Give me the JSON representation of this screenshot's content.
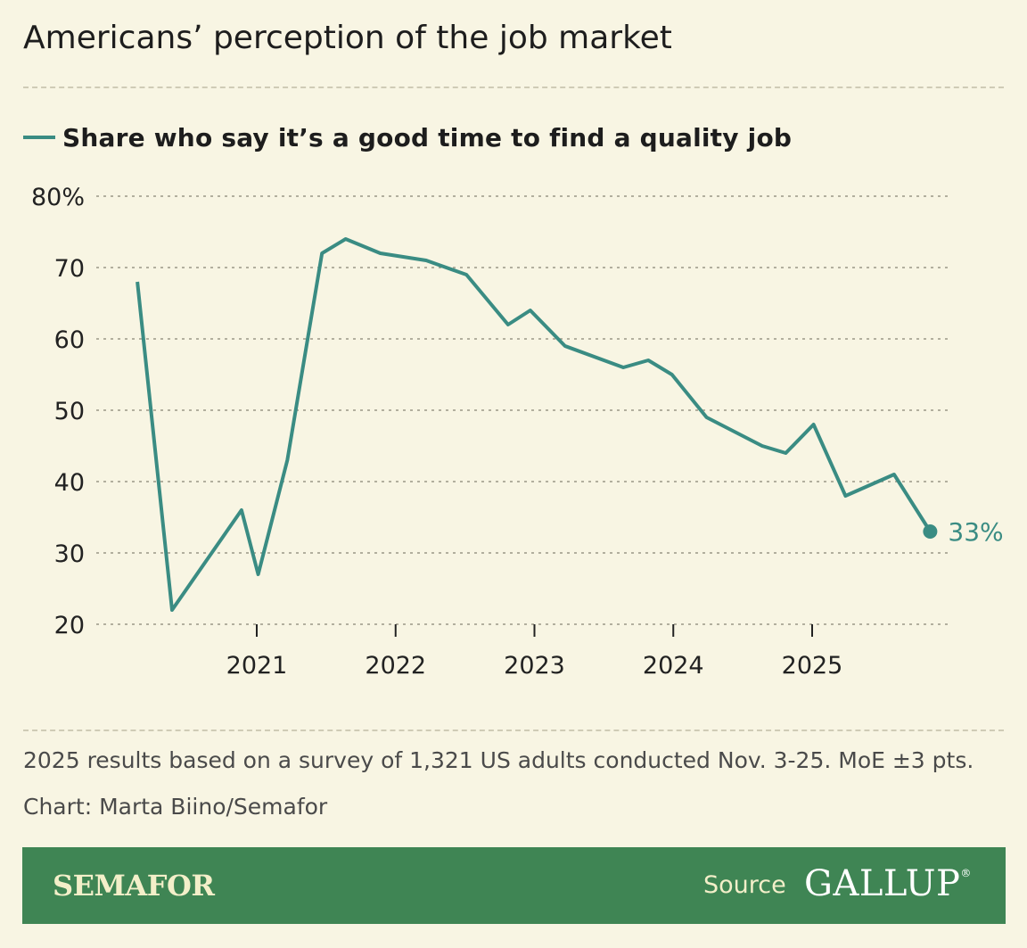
{
  "title": "Americans’ perception of the job market",
  "legend_label": "Share who say it’s a good time to find a quality job",
  "note": "2025 results based on a survey of 1,321 US adults conducted Nov. 3-25. MoE ±3 pts.",
  "credit": "Chart: Marta Biino/Semafor",
  "footer": {
    "brand": "SEMAFOR",
    "source_label": "Source",
    "source_name": "GALLUP"
  },
  "colors": {
    "line": "#3a8c83",
    "background": "#f8f5e3",
    "footer": "#3f8554"
  },
  "chart_data": {
    "type": "line",
    "title": "Americans’ perception of the job market",
    "xlabel": "",
    "ylabel": "",
    "ylim": [
      20,
      80
    ],
    "xlim": [
      2020.0,
      2026.0
    ],
    "y_ticks": [
      20,
      30,
      40,
      50,
      60,
      70,
      80
    ],
    "y_tick_labels": [
      "20",
      "30",
      "40",
      "50",
      "60",
      "70",
      "80%"
    ],
    "x_ticks": [
      2021,
      2022,
      2023,
      2024,
      2025
    ],
    "x_tick_labels": [
      "2021",
      "2022",
      "2023",
      "2024",
      "2025"
    ],
    "grid": "horizontal dotted",
    "legend": "top-left",
    "end_label": "33%",
    "series": [
      {
        "name": "Share who say it’s a good time to find a quality job",
        "x": [
          2020.14,
          2020.39,
          2020.64,
          2020.89,
          2021.01,
          2021.22,
          2021.47,
          2021.64,
          2021.89,
          2022.22,
          2022.51,
          2022.81,
          2022.97,
          2023.22,
          2023.64,
          2023.82,
          2023.99,
          2024.24,
          2024.64,
          2024.81,
          2025.01,
          2025.24,
          2025.59,
          2025.85
        ],
        "values": [
          68,
          22,
          29,
          36,
          27,
          43,
          72,
          74,
          72,
          71,
          69,
          62,
          64,
          59,
          56,
          57,
          55,
          49,
          45,
          44,
          48,
          38,
          41,
          33
        ]
      }
    ]
  }
}
